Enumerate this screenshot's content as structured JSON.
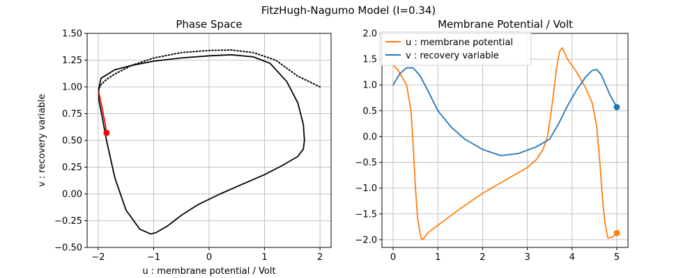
{
  "figure_title": "FitzHugh-Nagumo Model (I=0.34)",
  "chart_data": [
    {
      "type": "line",
      "title": "Phase Space",
      "xlabel": "u : membrane potential / Volt",
      "ylabel": "v : recovery variable",
      "xlim": [
        -2.2,
        2.2
      ],
      "ylim": [
        -0.5,
        1.5
      ],
      "xticks": [
        -2,
        -1,
        0,
        1,
        2
      ],
      "yticks": [
        -0.5,
        -0.25,
        0.0,
        0.25,
        0.5,
        0.75,
        1.0,
        1.25,
        1.5
      ],
      "xtick_labels": [
        "−2",
        "−1",
        "0",
        "1",
        "2"
      ],
      "ytick_labels": [
        "−0.50",
        "−0.25",
        "0.00",
        "0.25",
        "0.50",
        "0.75",
        "1.00",
        "1.25",
        "1.50"
      ],
      "grid": true,
      "series": [
        {
          "style": "dotted",
          "color": "#000000",
          "u": [
            2.0,
            1.6,
            1.2,
            0.8,
            0.4,
            0.0,
            -0.5,
            -1.0,
            -1.4,
            -1.7,
            -1.85,
            -1.95,
            -1.99
          ],
          "v": [
            1.0,
            1.1,
            1.25,
            1.32,
            1.345,
            1.34,
            1.32,
            1.27,
            1.2,
            1.12,
            1.07,
            1.02,
            0.98
          ]
        },
        {
          "style": "solid",
          "color": "#000000",
          "u": [
            -1.99,
            -1.95,
            -1.7,
            -1.4,
            -1.0,
            -0.5,
            0.0,
            0.4,
            0.8,
            1.1,
            1.4,
            1.6,
            1.7,
            1.72,
            1.7,
            1.6,
            1.3,
            1.0,
            0.6,
            0.2,
            -0.2,
            -0.5,
            -0.75,
            -0.95,
            -1.05,
            -1.25,
            -1.5,
            -1.7,
            -1.85,
            -1.94,
            -1.99,
            -1.99
          ],
          "v": [
            0.98,
            1.08,
            1.16,
            1.2,
            1.24,
            1.27,
            1.29,
            1.3,
            1.28,
            1.22,
            1.05,
            0.85,
            0.65,
            0.5,
            0.42,
            0.35,
            0.26,
            0.18,
            0.09,
            0.0,
            -0.1,
            -0.2,
            -0.3,
            -0.36,
            -0.375,
            -0.33,
            -0.15,
            0.15,
            0.5,
            0.75,
            0.88,
            0.98
          ]
        },
        {
          "style": "solid",
          "color": "#ff0000",
          "u": [
            -1.99,
            -1.95,
            -1.91,
            -1.87,
            -1.85
          ],
          "v": [
            0.95,
            0.85,
            0.75,
            0.64,
            0.57
          ]
        }
      ],
      "marker": {
        "u": -1.85,
        "v": 0.57,
        "color": "#ff0000"
      }
    },
    {
      "type": "line",
      "title": "Membrane Potential / Volt",
      "xlim": [
        -0.25,
        5.25
      ],
      "ylim": [
        -2.15,
        2.0
      ],
      "xticks": [
        0,
        1,
        2,
        3,
        4,
        5
      ],
      "yticks": [
        -2.0,
        -1.5,
        -1.0,
        -0.5,
        0.0,
        0.5,
        1.0,
        1.5,
        2.0
      ],
      "xtick_labels": [
        "0",
        "1",
        "2",
        "3",
        "4",
        "5"
      ],
      "ytick_labels": [
        "−2.0",
        "−1.5",
        "−1.0",
        "−0.5",
        "0.0",
        "0.5",
        "1.0",
        "1.5",
        "2.0"
      ],
      "grid": true,
      "legend": "top-left",
      "series": [
        {
          "name": "u : membrane potential",
          "color": "#ff7f0e",
          "x": [
            0.0,
            0.1,
            0.2,
            0.3,
            0.4,
            0.45,
            0.5,
            0.55,
            0.62,
            0.66,
            0.8,
            1.0,
            1.5,
            2.0,
            2.5,
            3.0,
            3.2,
            3.35,
            3.45,
            3.52,
            3.58,
            3.65,
            3.72,
            3.78,
            3.9,
            4.1,
            4.3,
            4.45,
            4.55,
            4.62,
            4.68,
            4.73,
            4.8,
            4.9,
            5.0
          ],
          "y": [
            1.38,
            1.3,
            1.15,
            1.0,
            0.5,
            -0.2,
            -1.0,
            -1.6,
            -1.96,
            -2.0,
            -1.85,
            -1.72,
            -1.4,
            -1.1,
            -0.85,
            -0.6,
            -0.45,
            -0.25,
            0.0,
            0.4,
            0.8,
            1.3,
            1.65,
            1.72,
            1.5,
            1.25,
            0.95,
            0.65,
            0.2,
            -0.5,
            -1.2,
            -1.65,
            -1.97,
            -1.95,
            -1.87
          ]
        },
        {
          "name": "v : recovery variable",
          "color": "#1f77b4",
          "x": [
            0.0,
            0.15,
            0.3,
            0.45,
            0.6,
            0.8,
            1.0,
            1.3,
            1.6,
            2.0,
            2.4,
            2.8,
            3.2,
            3.5,
            3.7,
            3.9,
            4.1,
            4.3,
            4.45,
            4.55,
            4.65,
            4.75,
            4.85,
            5.0
          ],
          "y": [
            1.0,
            1.22,
            1.33,
            1.33,
            1.18,
            0.85,
            0.5,
            0.18,
            -0.05,
            -0.25,
            -0.37,
            -0.33,
            -0.2,
            -0.05,
            0.25,
            0.6,
            0.9,
            1.15,
            1.28,
            1.3,
            1.2,
            1.0,
            0.8,
            0.57
          ]
        }
      ],
      "markers": [
        {
          "x": 5.0,
          "y": -1.87,
          "color": "#ff7f0e"
        },
        {
          "x": 5.0,
          "y": 0.57,
          "color": "#1f77b4"
        }
      ]
    }
  ]
}
